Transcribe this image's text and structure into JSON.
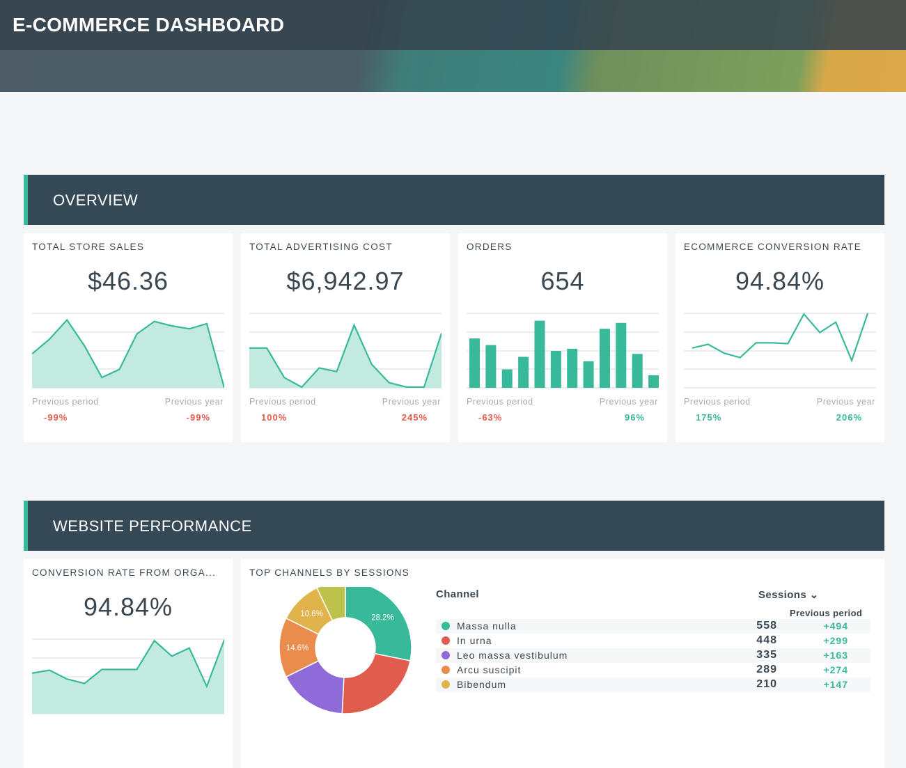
{
  "header": {
    "title": "E-COMMERCE DASHBOARD"
  },
  "sections": {
    "overview": "OVERVIEW",
    "website": "WEBSITE PERFORMANCE"
  },
  "labels": {
    "prev_period": "Previous period",
    "prev_year": "Previous year"
  },
  "colors": {
    "accent": "#38b99a",
    "negative": "#e55b4b",
    "section_bg": "#354855"
  },
  "overview": [
    {
      "title": "TOTAL STORE SALES",
      "value": "$46.36",
      "kind": "area",
      "series": [
        46,
        66,
        92,
        57,
        14,
        25,
        73,
        90,
        84,
        80,
        87,
        0
      ],
      "prev_period": "-99%",
      "prev_year": "-99%",
      "pp_sign": "neg",
      "py_sign": "neg"
    },
    {
      "title": "TOTAL ADVERTISING COST",
      "value": "$6,942.97",
      "kind": "area",
      "series": [
        54,
        54,
        14,
        1,
        27,
        22,
        85,
        32,
        7,
        1,
        1,
        74
      ],
      "prev_period": "100%",
      "prev_year": "245%",
      "pp_sign": "neg",
      "py_sign": "neg"
    },
    {
      "title": "ORDERS",
      "value": "654",
      "kind": "bar",
      "series": [
        67,
        58,
        25,
        42,
        91,
        50,
        53,
        36,
        80,
        88,
        46,
        17
      ],
      "prev_period": "-63%",
      "prev_year": "96%",
      "pp_sign": "neg",
      "py_sign": "pos"
    },
    {
      "title": "ECOMMERCE CONVERSION RATE",
      "value": "94.84%",
      "kind": "line",
      "series": [
        54,
        59,
        47,
        41,
        61,
        61,
        60,
        100,
        75,
        89,
        37,
        101
      ],
      "prev_period": "175%",
      "prev_year": "206%",
      "pp_sign": "pos",
      "py_sign": "pos"
    }
  ],
  "website": {
    "conv_card": {
      "title": "CONVERSION RATE FROM ORGA...",
      "value": "94.84%",
      "series": [
        55,
        59,
        47,
        41,
        60,
        60,
        60,
        99,
        78,
        89,
        37,
        100
      ]
    },
    "channels": {
      "title": "TOP CHANNELS BY SESSIONS",
      "col_channel": "Channel",
      "col_sessions": "Sessions",
      "col_prev": "Previous period",
      "rows": [
        {
          "name": "Massa nulla",
          "sessions": "558",
          "delta": "+494",
          "color": "#38b99a"
        },
        {
          "name": "In urna",
          "sessions": "448",
          "delta": "+299",
          "color": "#e05c4d"
        },
        {
          "name": "Leo massa vestibulum",
          "sessions": "335",
          "delta": "+163",
          "color": "#8e6bd8"
        },
        {
          "name": "Arcu suscipit",
          "sessions": "289",
          "delta": "+274",
          "color": "#ea8c4c"
        },
        {
          "name": "Bibendum",
          "sessions": "210",
          "delta": "+147",
          "color": "#e0b44a"
        }
      ]
    },
    "chart_data": {
      "type": "pie",
      "slices": [
        {
          "share": 28.2,
          "label": "28.2%",
          "color": "#38b99a"
        },
        {
          "share": 22.6,
          "label": "",
          "color": "#e05c4d"
        },
        {
          "share": 16.9,
          "label": "",
          "color": "#8e6bd8"
        },
        {
          "share": 14.6,
          "label": "14.6%",
          "color": "#ea8c4c"
        },
        {
          "share": 10.6,
          "label": "10.6%",
          "color": "#e0b44a"
        },
        {
          "share": 7.1,
          "label": "",
          "color": "#bcc24a"
        }
      ]
    }
  }
}
